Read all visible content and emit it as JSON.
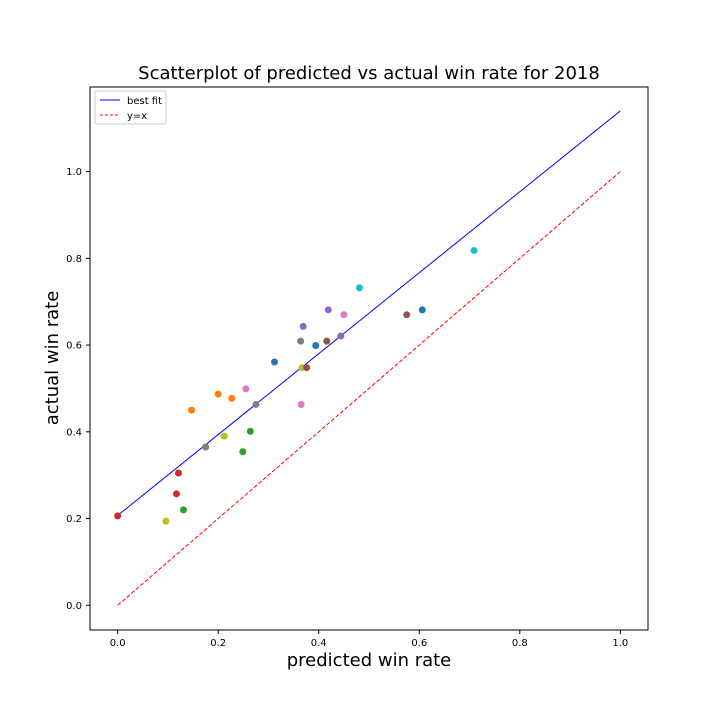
{
  "chart_data": {
    "type": "scatter",
    "title": "Scatterplot of predicted vs actual win rate for 2018",
    "xlabel": "predicted win rate",
    "ylabel": "actual win rate",
    "xlim": [
      -0.055,
      1.055
    ],
    "ylim": [
      -0.057,
      1.195
    ],
    "xticks": [
      "0.0",
      "0.2",
      "0.4",
      "0.6",
      "0.8",
      "1.0"
    ],
    "yticks": [
      "0.0",
      "0.2",
      "0.4",
      "0.6",
      "0.8",
      "1.0"
    ],
    "grid": false,
    "legend_position": "top-left",
    "legend": [
      "best fit",
      "y=x"
    ],
    "lines": [
      {
        "name": "best fit",
        "color": "#0000ff",
        "style": "solid",
        "x": [
          0.0,
          1.0
        ],
        "y": [
          0.207,
          1.14
        ]
      },
      {
        "name": "y=x",
        "color": "#ff0000",
        "style": "dashed",
        "x": [
          0.0,
          1.0
        ],
        "y": [
          0.0,
          1.0
        ]
      }
    ],
    "points": [
      {
        "x": 0.0,
        "y": 0.206,
        "color": "#d62728"
      },
      {
        "x": 0.096,
        "y": 0.194,
        "color": "#bcbd22"
      },
      {
        "x": 0.117,
        "y": 0.257,
        "color": "#d62728"
      },
      {
        "x": 0.121,
        "y": 0.305,
        "color": "#d62728"
      },
      {
        "x": 0.131,
        "y": 0.22,
        "color": "#2ca02c"
      },
      {
        "x": 0.147,
        "y": 0.45,
        "color": "#ff7f0e"
      },
      {
        "x": 0.175,
        "y": 0.365,
        "color": "#7f7f7f"
      },
      {
        "x": 0.2,
        "y": 0.487,
        "color": "#ff7f0e"
      },
      {
        "x": 0.212,
        "y": 0.39,
        "color": "#bcbd22"
      },
      {
        "x": 0.227,
        "y": 0.477,
        "color": "#ff7f0e"
      },
      {
        "x": 0.249,
        "y": 0.354,
        "color": "#2ca02c"
      },
      {
        "x": 0.255,
        "y": 0.499,
        "color": "#e377c2"
      },
      {
        "x": 0.264,
        "y": 0.401,
        "color": "#2ca02c"
      },
      {
        "x": 0.275,
        "y": 0.463,
        "color": "#7f7f7f"
      },
      {
        "x": 0.312,
        "y": 0.561,
        "color": "#1f77b4"
      },
      {
        "x": 0.364,
        "y": 0.609,
        "color": "#7f7f7f"
      },
      {
        "x": 0.365,
        "y": 0.463,
        "color": "#e377c2"
      },
      {
        "x": 0.367,
        "y": 0.548,
        "color": "#bcbd22"
      },
      {
        "x": 0.369,
        "y": 0.643,
        "color": "#9467bd"
      },
      {
        "x": 0.376,
        "y": 0.548,
        "color": "#8c564b"
      },
      {
        "x": 0.394,
        "y": 0.599,
        "color": "#1f77b4"
      },
      {
        "x": 0.416,
        "y": 0.609,
        "color": "#8c564b"
      },
      {
        "x": 0.419,
        "y": 0.681,
        "color": "#9467bd"
      },
      {
        "x": 0.444,
        "y": 0.621,
        "color": "#9467bd"
      },
      {
        "x": 0.45,
        "y": 0.67,
        "color": "#e377c2"
      },
      {
        "x": 0.481,
        "y": 0.732,
        "color": "#17becf"
      },
      {
        "x": 0.575,
        "y": 0.67,
        "color": "#8c564b"
      },
      {
        "x": 0.606,
        "y": 0.681,
        "color": "#1f77b4"
      },
      {
        "x": 0.709,
        "y": 0.818,
        "color": "#17becf"
      }
    ]
  }
}
